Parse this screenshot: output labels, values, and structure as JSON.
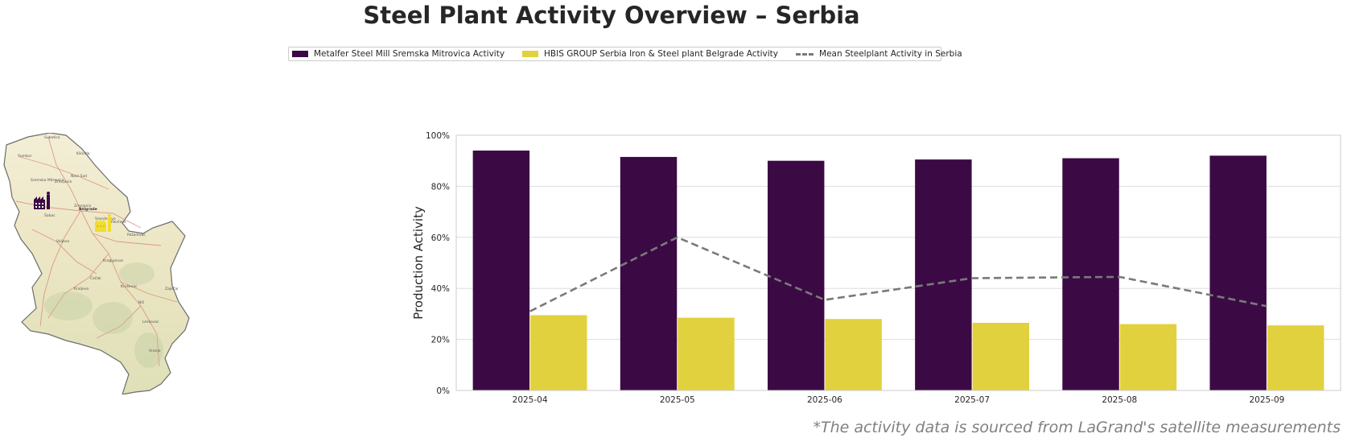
{
  "title": "Steel Plant Activity Overview – Serbia",
  "legend": {
    "item1": "Metalfer Steel Mill Sremska Mitrovica Activity",
    "item2": "HBIS GROUP Serbia Iron & Steel plant Belgrade Activity",
    "item3": "Mean Steelplant Activity in Serbia"
  },
  "map": {
    "labels": [
      "Belgrade",
      "Novi Sad",
      "Subotica",
      "Sombor",
      "Zrenjanin",
      "Kraljevo",
      "Kragujevac",
      "Niš",
      "Smederevo",
      "Pančevo",
      "Šabac",
      "Valjevo",
      "Čačak",
      "Leskovac",
      "Vranje",
      "Zaječar",
      "Kruševac",
      "Požarevac",
      "Sremska Mitrovica",
      "Kikinda"
    ]
  },
  "colors": {
    "metalfer": "#3b0a45",
    "hbis": "#e1d13e",
    "mean": "#7a7a7a"
  },
  "chart_data": {
    "type": "bar",
    "categories": [
      "2025-04",
      "2025-05",
      "2025-06",
      "2025-07",
      "2025-08",
      "2025-09"
    ],
    "series": [
      {
        "name": "Metalfer Steel Mill Sremska Mitrovica Activity",
        "values": [
          94,
          91.5,
          90,
          90.5,
          91,
          92
        ]
      },
      {
        "name": "HBIS GROUP Serbia Iron & Steel plant Belgrade Activity",
        "values": [
          29.5,
          28.5,
          28,
          26.5,
          26,
          25.5
        ]
      }
    ],
    "line": {
      "name": "Mean Steelplant Activity in Serbia",
      "values": [
        31,
        60,
        35.5,
        44,
        44.5,
        33
      ]
    },
    "ylabel": "Production Activity",
    "xlabel": "",
    "ylim": [
      0,
      100
    ],
    "yticks": [
      0,
      20,
      40,
      60,
      80,
      100
    ],
    "ytick_labels": [
      "0%",
      "20%",
      "40%",
      "60%",
      "80%",
      "100%"
    ]
  },
  "footnote": "*The activity data is sourced from LaGrand's satellite measurements"
}
